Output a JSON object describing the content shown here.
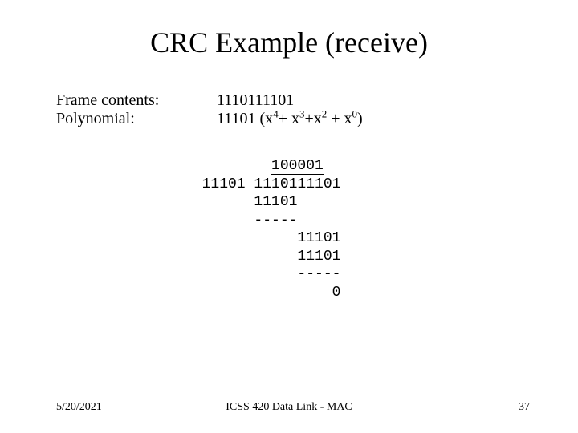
{
  "title": "CRC Example (receive)",
  "rows": {
    "frame_label": "Frame contents:",
    "frame_value": "1110111101",
    "poly_label": "Polynomial:",
    "poly_value_prefix": "11101 (x",
    "poly_exp1": "4",
    "poly_mid1": "+ x",
    "poly_exp2": "3",
    "poly_mid2": "+x",
    "poly_exp3": "2",
    "poly_mid3": " + x",
    "poly_exp4": "0",
    "poly_suffix": ")"
  },
  "division": {
    "quotient_pad": "          ",
    "quotient": "100001",
    "divisor": "  11101",
    "dividend": " 1110111101",
    "l1": "        11101",
    "l2": "        -----",
    "l3": "             11101",
    "l4": "             11101",
    "l5": "             -----",
    "l6": "                 0"
  },
  "footer": {
    "date": "5/20/2021",
    "center": "ICSS 420 Data Link - MAC",
    "page": "37"
  },
  "colors": {
    "background": "#ffffff",
    "text": "#000000"
  }
}
